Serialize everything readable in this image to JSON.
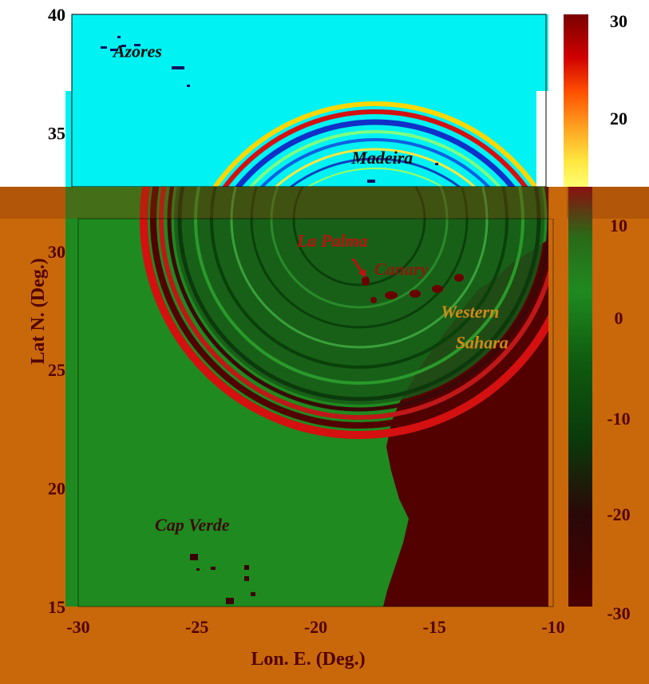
{
  "chart_data": {
    "type": "heatmap",
    "xlabel": "Lon. E. (Deg.)",
    "ylabel": "Lat N. (Deg.)",
    "xlim": [
      -30,
      -10
    ],
    "ylim": [
      15,
      40
    ],
    "x_ticks": [
      "-30",
      "-25",
      "-20",
      "-15",
      "-10"
    ],
    "y_ticks": [
      "15",
      "20",
      "25",
      "30",
      "35",
      "40"
    ],
    "colorbar": {
      "range": [
        -30,
        30
      ],
      "ticks": [
        "30",
        "20",
        "10",
        "0",
        "-10",
        "-20",
        "-30"
      ],
      "colormap_upper": "jet (upper panel)",
      "colormap_lower": "red-green-dark (lower panel)"
    },
    "annotations": [
      {
        "text": "Azores",
        "lon": -27.5,
        "lat": 38.2,
        "color": "#0a0a0a"
      },
      {
        "text": "Madeira",
        "lon": -17.2,
        "lat": 33.7,
        "color": "#0a0a0a"
      },
      {
        "text": "La Palma",
        "lon": -19.3,
        "lat": 30.2,
        "color": "#c01010"
      },
      {
        "text": "Canary",
        "lon": -16.4,
        "lat": 29.0,
        "color": "#8b1a0a"
      },
      {
        "text": "Western",
        "lon": -13.5,
        "lat": 27.2,
        "color": "#d08a18"
      },
      {
        "text": "Sahara",
        "lon": -13.0,
        "lat": 25.9,
        "color": "#d08a18"
      },
      {
        "text": "Cap Verde",
        "lon": -25.2,
        "lat": 18.2,
        "color": "#3a0a0a"
      }
    ]
  },
  "colors": {
    "background_outer": "#c8680a",
    "ocean_upper": "#00f2f2",
    "ocean_lower": "#1f8a1f",
    "land_lower": "#520000",
    "wave_red": "#d41010",
    "wave_blue": "#1030c8"
  }
}
